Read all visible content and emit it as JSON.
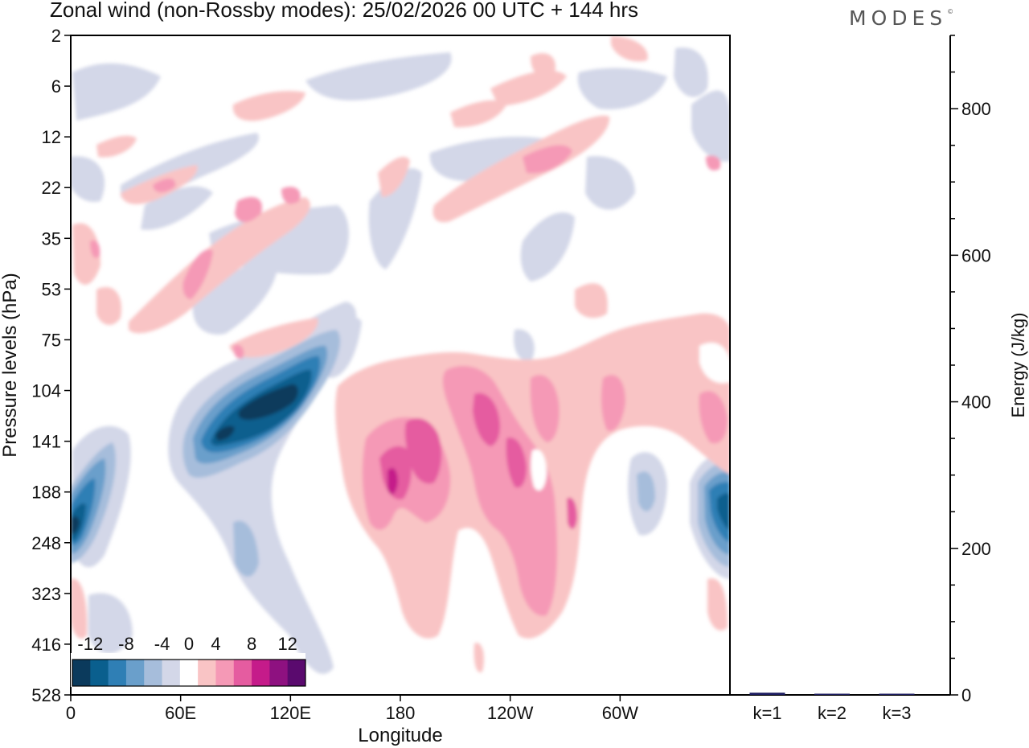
{
  "header": {
    "title": "Zonal wind (non-Rossby modes):  25/02/2026  00 UTC  + 144 hrs",
    "logo": "MODES",
    "logo_mark": "©"
  },
  "chart_data": [
    {
      "type": "heatmap",
      "title": "Zonal wind (non-Rossby modes):  25/02/2026  00 UTC  + 144 hrs",
      "xlabel": "Longitude",
      "ylabel": "Pressure levels (hPa)",
      "x_ticks": [
        "0",
        "60E",
        "120E",
        "180",
        "120W",
        "60W"
      ],
      "x_tick_degrees": [
        0,
        60,
        120,
        180,
        240,
        300
      ],
      "xlim": [
        0,
        360
      ],
      "y_ticks": [
        "2",
        "6",
        "12",
        "22",
        "35",
        "53",
        "75",
        "104",
        "141",
        "188",
        "248",
        "323",
        "416",
        "528"
      ],
      "colorbar": {
        "tick_labels": [
          "-12",
          "-8",
          "-4",
          "0",
          "4",
          "8",
          "12"
        ],
        "levels": [
          -14,
          -12,
          -10,
          -8,
          -6,
          -4,
          -2,
          2,
          4,
          6,
          8,
          10,
          12,
          14
        ],
        "colors": [
          "#0b3a5c",
          "#0a5f8e",
          "#2f7fb5",
          "#6a9fcb",
          "#a6bddb",
          "#d3d7e8",
          "#ffffff",
          "#f9c4c5",
          "#f599b6",
          "#e55ca0",
          "#c51b8a",
          "#8e1180",
          "#5a0a6e"
        ]
      },
      "features": [
        {
          "name": "negative core near 110E, 104-141 hPa",
          "lon": 110,
          "level": "104-141",
          "min_value": -14
        },
        {
          "name": "negative jet near 0E, 188-248 hPa",
          "lon": 5,
          "level": "188-248",
          "min_value": -12
        },
        {
          "name": "negative jet near 355E, 188-248 hPa",
          "lon": 355,
          "level": "188-248",
          "min_value": -10
        },
        {
          "name": "positive core near 175E, 141-188 hPa",
          "lon": 175,
          "level": "141-188",
          "max_value": 10
        },
        {
          "name": "positive band near 145W, 104-141 hPa",
          "lon": 215,
          "level": "104-141",
          "max_value": 8
        },
        {
          "name": "positive tongue near 120W, 141-323 hPa",
          "lon": 240,
          "level": "141-323",
          "max_value": 6
        },
        {
          "name": "positive tilted band 40E-130E, 22-75 hPa",
          "lon": 80,
          "level": "22-75",
          "max_value": 6
        },
        {
          "name": "positive tilted band 190E-300E, 12-35 hPa",
          "lon": 255,
          "level": "12-35",
          "max_value": 6
        }
      ]
    },
    {
      "type": "bar",
      "title": "",
      "xlabel": "",
      "ylabel": "Energy (J/kg)",
      "categories": [
        "k=1",
        "k=2",
        "k=3"
      ],
      "values": [
        3,
        1,
        1
      ],
      "ylim": [
        0,
        900
      ],
      "y_ticks": [
        "0",
        "200",
        "400",
        "600",
        "800"
      ],
      "bar_color": "#1a1a5e"
    }
  ]
}
